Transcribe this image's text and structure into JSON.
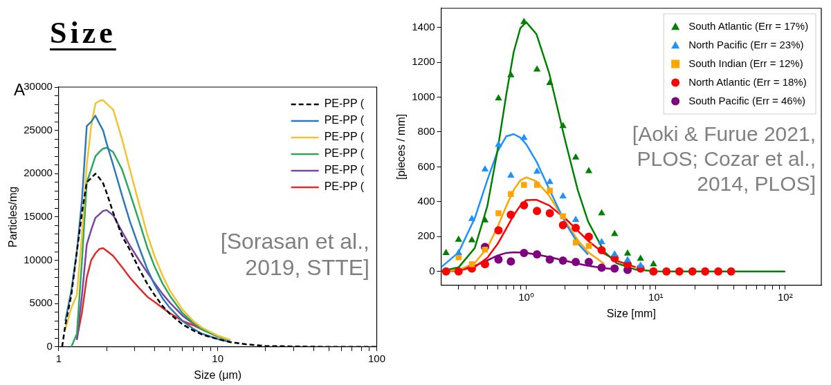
{
  "chart_data": [
    {
      "type": "line",
      "title": "Size",
      "xlabel": "Size (μm)",
      "ylabel": "Particles/mg",
      "annotations": [
        "A",
        "[Sorasan et al., 2019, STTE]"
      ],
      "log": "x",
      "grid": false,
      "legend": "top right",
      "marker": "none",
      "xlim": [
        1,
        100
      ],
      "xticks": [
        1,
        {
          "value": 2,
          "label": null
        },
        {
          "value": 3,
          "label": null
        },
        {
          "value": 4,
          "label": null
        },
        {
          "value": 5,
          "label": null
        },
        {
          "value": 6,
          "label": null
        },
        {
          "value": 7,
          "label": null
        },
        {
          "value": 8,
          "label": null
        },
        {
          "value": 9,
          "label": null
        },
        10,
        {
          "value": 20,
          "label": null
        },
        {
          "value": 30,
          "label": null
        },
        {
          "value": 40,
          "label": null
        },
        {
          "value": 50,
          "label": null
        },
        {
          "value": 60,
          "label": null
        },
        {
          "value": 70,
          "label": null
        },
        {
          "value": 80,
          "label": null
        },
        {
          "value": 90,
          "label": null
        },
        100
      ],
      "ylim": [
        0,
        30000
      ],
      "yticks": [
        0,
        {
          "value": 1000,
          "label": null
        },
        {
          "value": 2000,
          "label": null
        },
        {
          "value": 3000,
          "label": null
        },
        {
          "value": 4000,
          "label": null
        },
        5000,
        {
          "value": 6000,
          "label": null
        },
        {
          "value": 7000,
          "label": null
        },
        {
          "value": 8000,
          "label": null
        },
        {
          "value": 9000,
          "label": null
        },
        10000,
        {
          "value": 11000,
          "label": null
        },
        {
          "value": 12000,
          "label": null
        },
        {
          "value": 13000,
          "label": null
        },
        {
          "value": 14000,
          "label": null
        },
        15000,
        {
          "value": 16000,
          "label": null
        },
        {
          "value": 17000,
          "label": null
        },
        {
          "value": 18000,
          "label": null
        },
        {
          "value": 19000,
          "label": null
        },
        20000,
        {
          "value": 21000,
          "label": null
        },
        {
          "value": 22000,
          "label": null
        },
        {
          "value": 23000,
          "label": null
        },
        {
          "value": 24000,
          "label": null
        },
        25000,
        {
          "value": 26000,
          "label": null
        },
        {
          "value": 27000,
          "label": null
        },
        {
          "value": 28000,
          "label": null
        },
        {
          "value": 29000,
          "label": null
        },
        30000
      ],
      "x": [
        1.05,
        1.1,
        1.2,
        1.3,
        1.4,
        1.5,
        1.6,
        1.7,
        1.8,
        1.9,
        2,
        2.2,
        2.5,
        2.8,
        3.2,
        3.6,
        4,
        4.5,
        5,
        6,
        7,
        8,
        10,
        12,
        15,
        20,
        30,
        50,
        100
      ],
      "series": [
        {
          "name": "PE-PP (",
          "color": "#000000",
          "line_style": "dashed",
          "values": [
            0,
            2500,
            6000,
            11000,
            15500,
            19000,
            19500,
            20000,
            19500,
            18900,
            17800,
            15500,
            12800,
            11200,
            9000,
            7300,
            6000,
            4700,
            3800,
            2600,
            1900,
            1400,
            900,
            550,
            300,
            100,
            50,
            0,
            0
          ]
        },
        {
          "name": "PE-PP (",
          "color": "#2f78b8",
          "values": [
            null,
            3000,
            6500,
            11000,
            17000,
            25500,
            26000,
            26700,
            25800,
            25000,
            23500,
            21000,
            17500,
            14500,
            11500,
            9000,
            7200,
            5600,
            4500,
            3000,
            2100,
            1500,
            900,
            550,
            null,
            null,
            null,
            null,
            null
          ]
        },
        {
          "name": "PE-PP (",
          "color": "#f0c330",
          "values": [
            null,
            2000,
            4500,
            6000,
            13000,
            21000,
            25500,
            28100,
            28400,
            28500,
            28100,
            27400,
            24000,
            20500,
            16500,
            13000,
            10500,
            8200,
            6500,
            4300,
            3000,
            2200,
            1300,
            800,
            null,
            null,
            null,
            null,
            null
          ]
        },
        {
          "name": "PE-PP (",
          "color": "#2aa85e",
          "values": [
            null,
            null,
            0,
            1500,
            10000,
            19000,
            20500,
            22000,
            22500,
            22900,
            23000,
            22500,
            20500,
            17800,
            14500,
            11500,
            9300,
            7300,
            5900,
            3900,
            2800,
            2000,
            1200,
            750,
            null,
            null,
            null,
            null,
            null
          ]
        },
        {
          "name": "PE-PP (",
          "color": "#7a44a6",
          "values": [
            null,
            null,
            null,
            800,
            6000,
            11800,
            13500,
            14900,
            15300,
            15700,
            15800,
            15200,
            13300,
            11700,
            10000,
            8600,
            7400,
            6100,
            5100,
            3600,
            2700,
            2000,
            1200,
            720,
            null,
            null,
            null,
            null,
            null
          ]
        },
        {
          "name": "PE-PP (",
          "color": "#e02a2a",
          "values": [
            null,
            null,
            null,
            900,
            4000,
            8000,
            10000,
            10800,
            11300,
            11400,
            11100,
            10500,
            9200,
            8000,
            6800,
            5800,
            5200,
            4500,
            3900,
            3000,
            2500,
            2000,
            null,
            null,
            null,
            null,
            null,
            null,
            null
          ]
        }
      ]
    },
    {
      "type": "scatter",
      "xlabel": "Size [mm]",
      "ylabel": "[pieces / mm]",
      "annotations": [
        "[Aoki & Furue 2021, PLOS; Cozar et al., 2014, PLOS]"
      ],
      "log": "x",
      "grid": false,
      "legend": "top right",
      "xlim": [
        0.22,
        190
      ],
      "xticks": [
        {
          "value": 0.3,
          "label": null
        },
        {
          "value": 0.4,
          "label": null
        },
        {
          "value": 0.5,
          "label": null
        },
        {
          "value": 0.6,
          "label": null
        },
        {
          "value": 0.7,
          "label": null
        },
        {
          "value": 0.8,
          "label": null
        },
        {
          "value": 0.9,
          "label": null
        },
        {
          "value": 1,
          "label": "10⁰"
        },
        {
          "value": 2,
          "label": null
        },
        {
          "value": 3,
          "label": null
        },
        {
          "value": 4,
          "label": null
        },
        {
          "value": 5,
          "label": null
        },
        {
          "value": 6,
          "label": null
        },
        {
          "value": 7,
          "label": null
        },
        {
          "value": 8,
          "label": null
        },
        {
          "value": 9,
          "label": null
        },
        {
          "value": 10,
          "label": "10¹"
        },
        {
          "value": 20,
          "label": null
        },
        {
          "value": 30,
          "label": null
        },
        {
          "value": 40,
          "label": null
        },
        {
          "value": 50,
          "label": null
        },
        {
          "value": 60,
          "label": null
        },
        {
          "value": 70,
          "label": null
        },
        {
          "value": 80,
          "label": null
        },
        {
          "value": 90,
          "label": null
        },
        {
          "value": 100,
          "label": "10²"
        }
      ],
      "ylim": [
        -80,
        1510
      ],
      "yticks": [
        0,
        200,
        400,
        600,
        800,
        1000,
        1200,
        1400
      ],
      "series": [
        {
          "name": "South Atlantic (Err = 17%)",
          "type": "scatter",
          "marker": "triangle",
          "color": "#008000",
          "x": [
            0.24,
            0.3,
            0.38,
            0.48,
            0.61,
            0.76,
            0.96,
            1.21,
            1.52,
            1.92,
            2.41,
            3.04,
            3.82,
            4.81,
            6.06,
            7.63,
            9.6
          ],
          "values": [
            106,
            182,
            179,
            293,
            993,
            1126,
            1432,
            1159,
            1082,
            835,
            654,
            576,
            334,
            215,
            103,
            73,
            41
          ]
        },
        {
          "name": "North Pacific (Err = 23%)",
          "type": "scatter",
          "marker": "triangle",
          "color": "#1e90ff",
          "x": [
            0.3,
            0.38,
            0.48,
            0.61,
            0.76,
            0.96,
            1.21,
            1.52,
            1.92,
            2.41,
            3.82,
            4.81,
            6.06,
            7.63
          ],
          "values": [
            106,
            301,
            586,
            727,
            550,
            766,
            573,
            513,
            431,
            296,
            168,
            98,
            65,
            33
          ]
        },
        {
          "name": "South Indian (Err = 12%)",
          "type": "scatter",
          "marker": "square",
          "color": "#ffa500",
          "x": [
            0.3,
            0.38,
            0.48,
            0.61,
            0.76,
            0.96,
            1.21,
            1.52,
            1.92,
            2.41,
            3.04
          ],
          "values": [
            81,
            41,
            125,
            334,
            444,
            496,
            496,
            464,
            317,
            166,
            146
          ]
        },
        {
          "name": "North Atlantic (Err = 18%)",
          "type": "scatter",
          "marker": "circle",
          "color": "#ff0000",
          "x": [
            0.24,
            0.3,
            0.38,
            0.48,
            0.61,
            0.76,
            0.96,
            1.21,
            1.52,
            1.92,
            2.41,
            3.04,
            3.82,
            4.81,
            6.06,
            7.63,
            9.6,
            12.1,
            15.2,
            19.2,
            24.1,
            30.4,
            38.2
          ],
          "values": [
            0,
            0,
            16,
            41,
            236,
            325,
            379,
            347,
            334,
            265,
            249,
            199,
            122,
            76,
            41,
            16,
            0,
            0,
            0,
            0,
            0,
            0,
            0
          ]
        },
        {
          "name": "South Pacific (Err = 46%)",
          "type": "scatter",
          "marker": "circle",
          "color": "#800080",
          "x": [
            0.48,
            0.61,
            0.76,
            0.96,
            1.21,
            1.52,
            1.92,
            2.41,
            3.04,
            3.82,
            4.81,
            6.06
          ],
          "values": [
            140,
            68,
            57,
            106,
            98,
            68,
            62,
            54,
            54,
            21,
            16,
            8
          ]
        },
        {
          "type": "line",
          "marker": "none",
          "color": "#008000",
          "x": [
            0.22,
            0.3,
            0.4,
            0.5,
            0.6,
            0.7,
            0.8,
            0.9,
            1,
            1.2,
            1.5,
            2,
            2.5,
            3,
            4,
            5,
            7,
            10,
            15,
            20,
            30,
            50,
            100
          ],
          "values": [
            2,
            23,
            134,
            374,
            696,
            1013,
            1260,
            1396,
            1430,
            1361,
            1140,
            749,
            466,
            287,
            113,
            47,
            10,
            1,
            0,
            0,
            0,
            0,
            0
          ]
        },
        {
          "type": "line",
          "marker": "none",
          "color": "#1e90ff",
          "x": [
            0.22,
            0.3,
            0.4,
            0.5,
            0.6,
            0.7,
            0.8,
            0.9,
            1,
            1.2,
            1.5,
            2,
            2.5,
            3
          ],
          "values": [
            24,
            109,
            305,
            524,
            689,
            775,
            788,
            768,
            729,
            630,
            474,
            279,
            162,
            96
          ]
        },
        {
          "type": "line",
          "marker": "none",
          "color": "#ffa500",
          "x": [
            0.22,
            0.3,
            0.4,
            0.5,
            0.6,
            0.7,
            0.8,
            0.9,
            1,
            1.2,
            1.5,
            2,
            2.5,
            3,
            4
          ],
          "values": [
            1,
            8,
            48,
            136,
            255,
            374,
            468,
            523,
            540,
            517,
            435,
            287,
            179,
            111,
            43
          ]
        },
        {
          "type": "line",
          "marker": "none",
          "color": "#ff0000",
          "x": [
            0.22,
            0.3,
            0.4,
            0.5,
            0.6,
            0.7,
            0.8,
            0.9,
            1,
            1.2,
            1.5,
            2,
            2.5,
            3,
            4,
            5,
            7
          ],
          "values": [
            0,
            4,
            25,
            78,
            157,
            245,
            323,
            378,
            409,
            411,
            379,
            304,
            233,
            176,
            102,
            61,
            24
          ]
        },
        {
          "type": "line",
          "marker": "none",
          "color": "#800080",
          "x": [
            0.22,
            0.3,
            0.4,
            0.5,
            0.6,
            0.7,
            0.8,
            0.9,
            1,
            1.2,
            1.5,
            2,
            2.5,
            3,
            4,
            5
          ],
          "values": [
            1,
            9,
            32,
            63,
            91,
            106,
            110,
            109,
            106,
            97,
            83,
            61,
            44,
            32,
            18,
            11
          ]
        }
      ]
    }
  ]
}
